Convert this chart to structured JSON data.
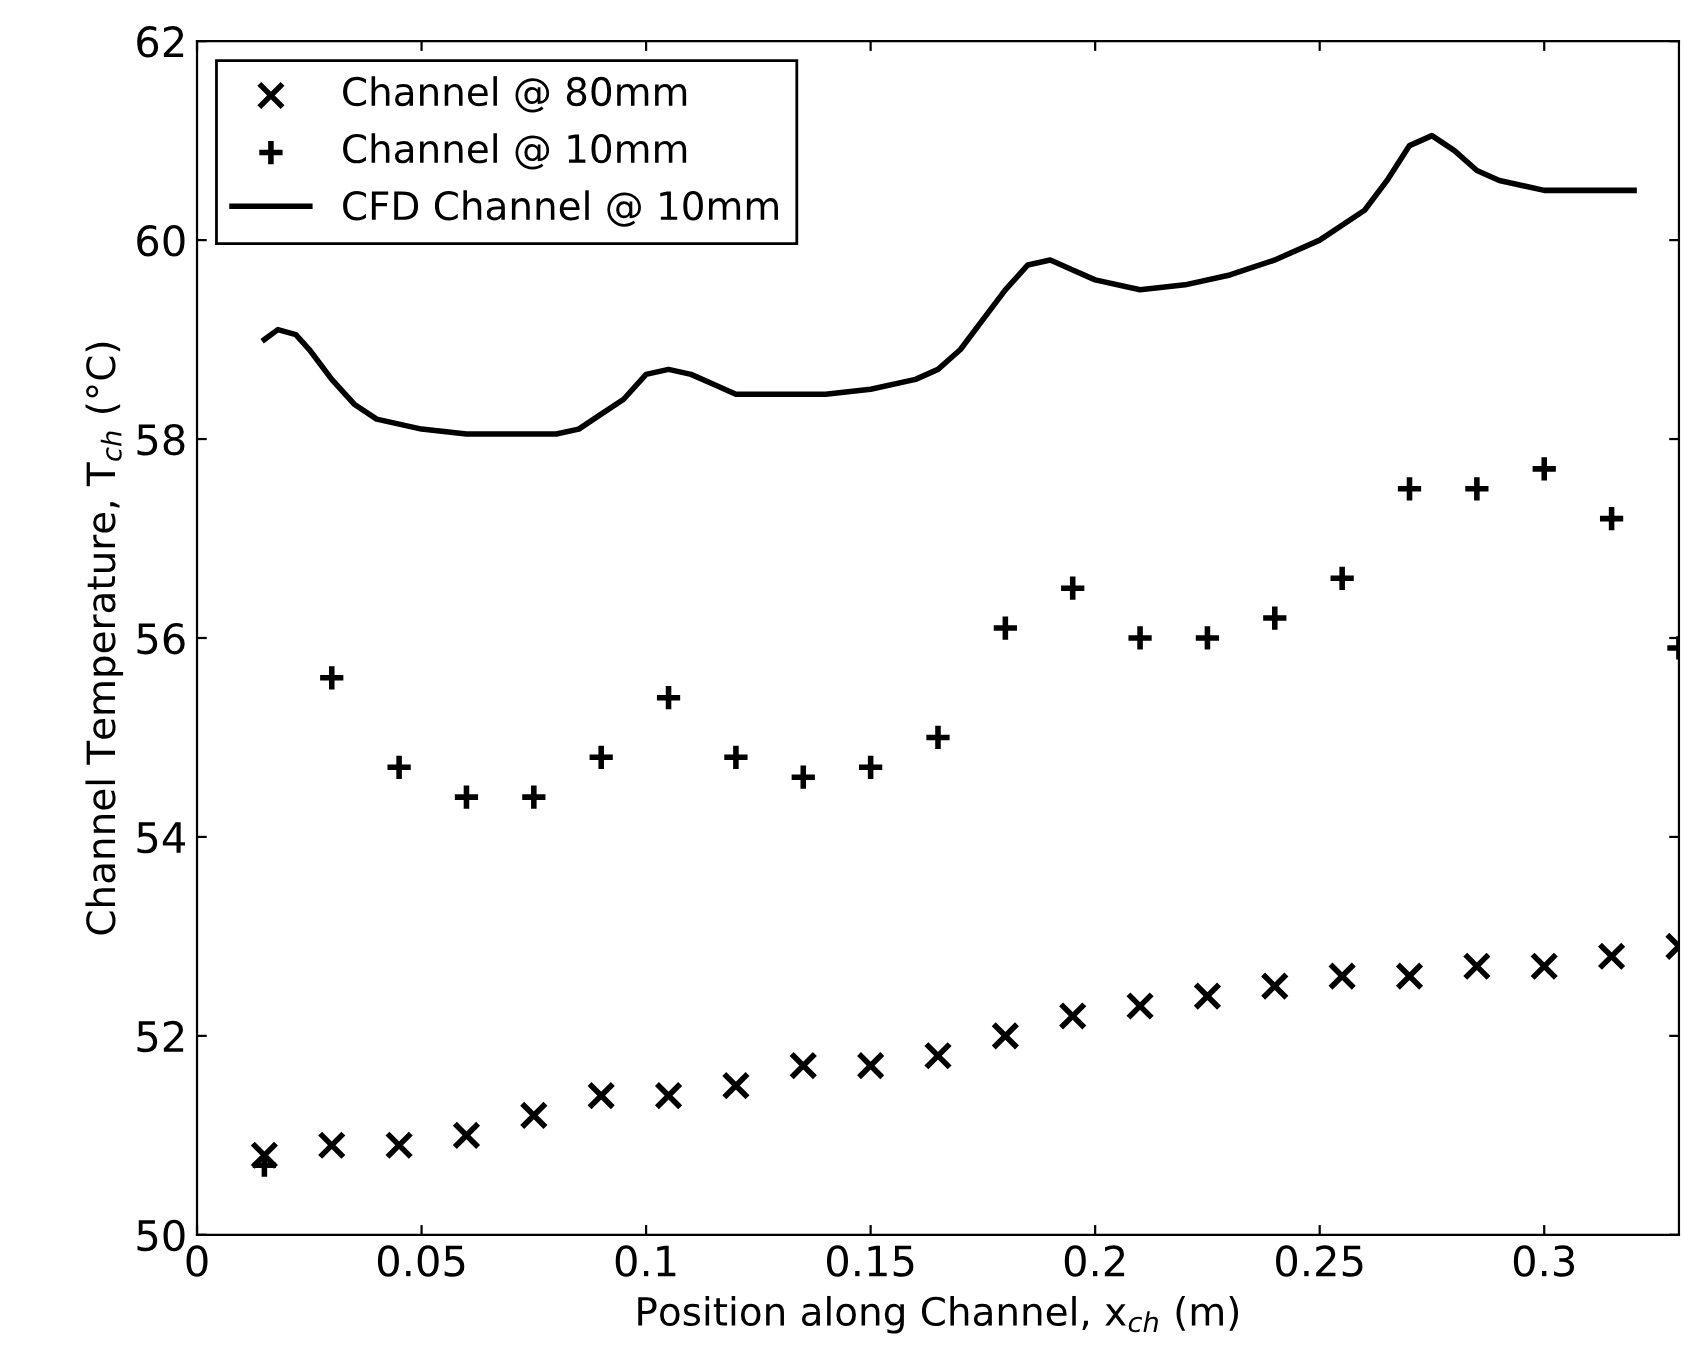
{
  "chart_data": {
    "type": "scatter",
    "xlabel": "Position along Channel, x$_{ch}$ (m)",
    "ylabel": "Channel Temperature, T$_{ch}$ (°C)",
    "xlim": [
      0,
      0.33
    ],
    "xticks": [
      0,
      0.05,
      0.1,
      0.15,
      0.2,
      0.25,
      0.3
    ],
    "ylim": [
      50,
      62
    ],
    "yticks": [
      50,
      52,
      54,
      56,
      58,
      60,
      62
    ],
    "grid": false,
    "legend": "top left",
    "series": [
      {
        "name": "Channel @ 80mm",
        "marker": "x",
        "color": "#000000",
        "x": [
          0.015,
          0.03,
          0.045,
          0.06,
          0.075,
          0.09,
          0.105,
          0.12,
          0.135,
          0.15,
          0.165,
          0.18,
          0.195,
          0.21,
          0.225,
          0.24,
          0.255,
          0.27,
          0.285,
          0.3,
          0.315,
          0.33
        ],
        "values": [
          50.8,
          50.9,
          50.9,
          51.0,
          51.2,
          51.4,
          51.4,
          51.5,
          51.7,
          51.7,
          51.8,
          52.0,
          52.2,
          52.3,
          52.4,
          52.5,
          52.6,
          52.6,
          52.7,
          52.7,
          52.8,
          52.9
        ]
      },
      {
        "name": "Channel @ 10mm",
        "marker": "cross",
        "color": "#000000",
        "x": [
          0.015,
          0.03,
          0.045,
          0.06,
          0.075,
          0.09,
          0.105,
          0.12,
          0.135,
          0.15,
          0.165,
          0.18,
          0.195,
          0.21,
          0.225,
          0.24,
          0.255,
          0.27,
          0.285,
          0.3,
          0.315,
          0.33
        ],
        "values": [
          50.7,
          55.6,
          54.7,
          54.4,
          54.4,
          54.8,
          55.4,
          54.8,
          54.6,
          54.7,
          55.0,
          56.1,
          56.5,
          56.0,
          56.0,
          56.2,
          56.6,
          57.5,
          57.5,
          57.7,
          57.2,
          55.9
        ]
      },
      {
        "name": "CFD Channel @ 10mm",
        "type": "line",
        "marker": "none",
        "line_style": "solid",
        "color": "#000000",
        "x": [
          0.015,
          0.018,
          0.022,
          0.025,
          0.03,
          0.035,
          0.04,
          0.05,
          0.06,
          0.07,
          0.08,
          0.085,
          0.09,
          0.095,
          0.1,
          0.105,
          0.11,
          0.115,
          0.12,
          0.13,
          0.14,
          0.15,
          0.16,
          0.165,
          0.17,
          0.175,
          0.18,
          0.185,
          0.19,
          0.195,
          0.2,
          0.21,
          0.22,
          0.23,
          0.24,
          0.25,
          0.26,
          0.265,
          0.27,
          0.275,
          0.28,
          0.285,
          0.29,
          0.3,
          0.31,
          0.315,
          0.32
        ],
        "values": [
          59.0,
          59.1,
          59.05,
          58.9,
          58.6,
          58.35,
          58.2,
          58.1,
          58.05,
          58.05,
          58.05,
          58.1,
          58.25,
          58.4,
          58.65,
          58.7,
          58.65,
          58.55,
          58.45,
          58.45,
          58.45,
          58.5,
          58.6,
          58.7,
          58.9,
          59.2,
          59.5,
          59.75,
          59.8,
          59.7,
          59.6,
          59.5,
          59.55,
          59.65,
          59.8,
          60.0,
          60.3,
          60.6,
          60.95,
          61.05,
          60.9,
          60.7,
          60.6,
          60.5,
          60.5,
          60.5,
          60.5
        ]
      }
    ]
  }
}
